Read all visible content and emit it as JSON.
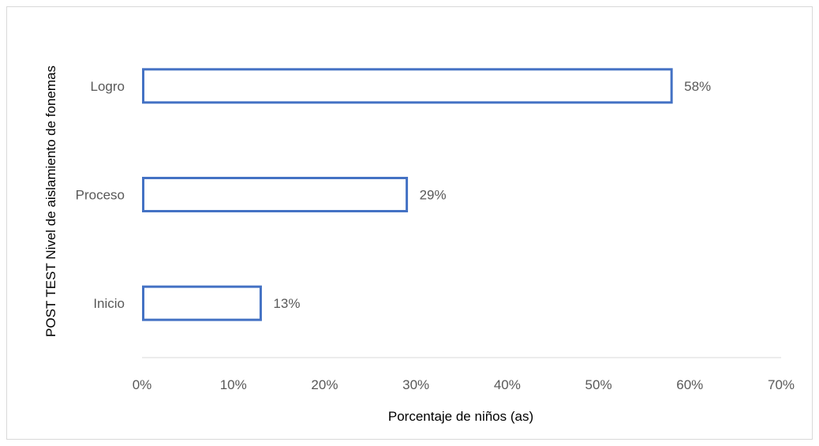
{
  "chart_data": {
    "type": "bar",
    "orientation": "horizontal",
    "categories": [
      "Logro",
      "Proceso",
      "Inicio"
    ],
    "values": [
      58,
      29,
      13
    ],
    "data_labels": [
      "58%",
      "29%",
      "13%"
    ],
    "xlabel": "Porcentaje de niños (as)",
    "ylabel": "POST TEST Nivel de aislamiento de fonemas",
    "xlim": [
      0,
      70
    ],
    "xticks": [
      0,
      10,
      20,
      30,
      40,
      50,
      60,
      70
    ],
    "xtick_labels": [
      "0%",
      "10%",
      "20%",
      "30%",
      "40%",
      "50%",
      "60%",
      "70%"
    ],
    "grid": false,
    "legend": "none",
    "bar_fill": "#ffffff",
    "bar_outline_color": "#4472c4",
    "axis_line_color": "#d9d9d9",
    "text_color": "#595959"
  }
}
